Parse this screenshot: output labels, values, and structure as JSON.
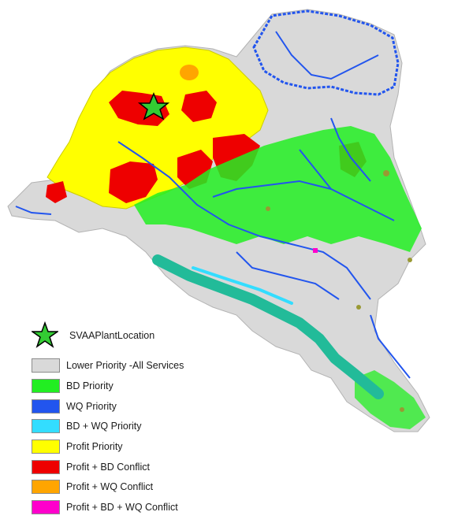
{
  "map": {
    "plant_marker": {
      "icon": "star-icon",
      "fill": "#33cc33"
    },
    "colors": {
      "lower": "#d9d9d9",
      "bd": "#22ee22",
      "wq": "#2255ee",
      "bdwq": "#33ddff",
      "profit": "#ffff00",
      "profit_bd": "#ee0000",
      "profit_wq": "#ffa500",
      "all": "#ff00cc",
      "riparian": "#22bb99",
      "olive": "#999933"
    }
  },
  "legend": {
    "plant_label": "SVAAPlantLocation",
    "items": [
      {
        "label": "Lower Priority -All Services",
        "color": "#d9d9d9"
      },
      {
        "label": "BD Priority",
        "color": "#22ee22"
      },
      {
        "label": "WQ Priority",
        "color": "#2255ee"
      },
      {
        "label": "BD + WQ Priority",
        "color": "#33ddff"
      },
      {
        "label": "Profit Priority",
        "color": "#ffff00"
      },
      {
        "label": "Profit + BD Conflict",
        "color": "#ee0000"
      },
      {
        "label": "Profit + WQ Conflict",
        "color": "#ffa500"
      },
      {
        "label": "Profit + BD + WQ Conflict",
        "color": "#ff00cc"
      }
    ]
  }
}
